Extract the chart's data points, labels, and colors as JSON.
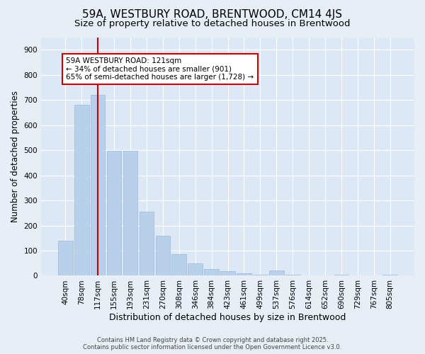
{
  "title": "59A, WESTBURY ROAD, BRENTWOOD, CM14 4JS",
  "subtitle": "Size of property relative to detached houses in Brentwood",
  "xlabel": "Distribution of detached houses by size in Brentwood",
  "ylabel": "Number of detached properties",
  "categories": [
    "40sqm",
    "78sqm",
    "117sqm",
    "155sqm",
    "193sqm",
    "231sqm",
    "270sqm",
    "308sqm",
    "346sqm",
    "384sqm",
    "423sqm",
    "461sqm",
    "499sqm",
    "537sqm",
    "576sqm",
    "614sqm",
    "652sqm",
    "690sqm",
    "729sqm",
    "767sqm",
    "805sqm"
  ],
  "values": [
    140,
    680,
    720,
    497,
    497,
    256,
    158,
    85,
    50,
    28,
    18,
    10,
    5,
    20,
    5,
    2,
    0,
    4,
    0,
    0,
    4
  ],
  "bar_color": "#b8d0ea",
  "bar_edge_color": "#9ab8d8",
  "vline_x_index": 2,
  "vline_color": "#cc0000",
  "annotation_text": "59A WESTBURY ROAD: 121sqm\n← 34% of detached houses are smaller (901)\n65% of semi-detached houses are larger (1,728) →",
  "annotation_box_facecolor": "#ffffff",
  "annotation_box_edgecolor": "#cc0000",
  "ylim": [
    0,
    950
  ],
  "yticks": [
    0,
    100,
    200,
    300,
    400,
    500,
    600,
    700,
    800,
    900
  ],
  "bg_color": "#e8eef5",
  "plot_bg_color": "#dce8f5",
  "grid_color": "#ffffff",
  "footer": "Contains HM Land Registry data © Crown copyright and database right 2025.\nContains public sector information licensed under the Open Government Licence v3.0.",
  "title_fontsize": 11,
  "subtitle_fontsize": 9.5,
  "xlabel_fontsize": 9,
  "ylabel_fontsize": 8.5,
  "tick_fontsize": 7.5,
  "annotation_fontsize": 7.5,
  "footer_fontsize": 6
}
